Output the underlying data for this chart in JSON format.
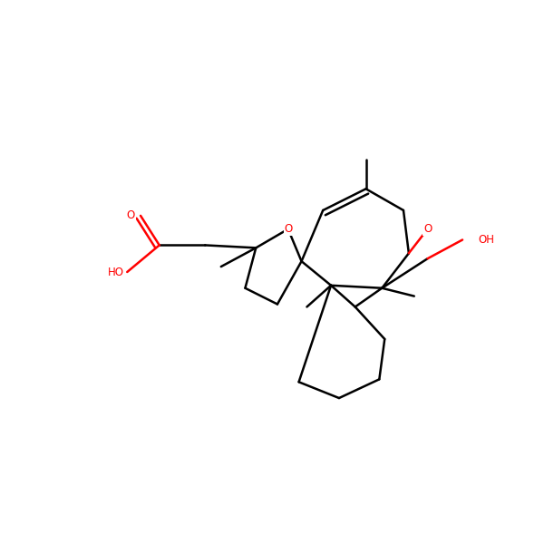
{
  "bg_color": "#ffffff",
  "bond_color": "#000000",
  "heteroatom_color": "#ff0000",
  "line_width": 1.8,
  "figsize": [
    6.0,
    6.0
  ],
  "dpi": 100,
  "xlim": [
    0,
    10
  ],
  "ylim": [
    0,
    10
  ]
}
